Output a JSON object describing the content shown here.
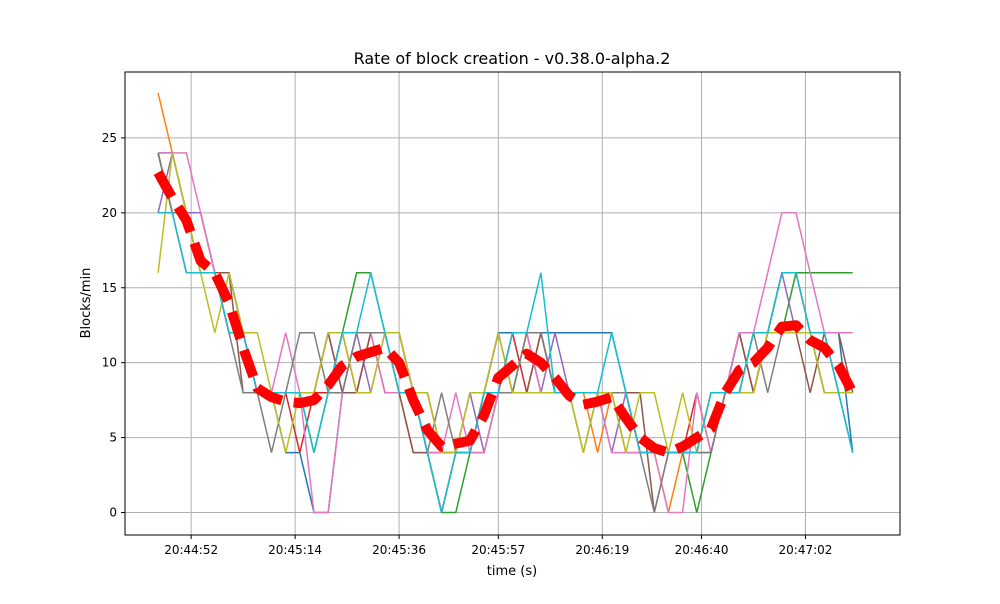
{
  "chart_data": {
    "type": "line",
    "title": "Rate of block creation  -  v0.38.0-alpha.2",
    "xlabel": "time (s)",
    "ylabel": "Blocks/min",
    "xlim": [
      "20:44:38",
      "20:47:22"
    ],
    "ylim": [
      -1.5,
      29.4
    ],
    "grid": true,
    "xticks": [
      "20:44:52",
      "20:45:14",
      "20:45:36",
      "20:45:57",
      "20:46:19",
      "20:46:40",
      "20:47:02"
    ],
    "yticks": [
      0,
      5,
      10,
      15,
      20,
      25
    ],
    "x": [
      "20:44:45",
      "20:44:48",
      "20:44:51",
      "20:44:54",
      "20:44:57",
      "20:45:00",
      "20:45:03",
      "20:45:06",
      "20:45:09",
      "20:45:12",
      "20:45:15",
      "20:45:18",
      "20:45:21",
      "20:45:24",
      "20:45:27",
      "20:45:30",
      "20:45:33",
      "20:45:36",
      "20:45:39",
      "20:45:42",
      "20:45:45",
      "20:45:48",
      "20:45:51",
      "20:45:54",
      "20:45:57",
      "20:46:00",
      "20:46:03",
      "20:46:06",
      "20:46:09",
      "20:46:12",
      "20:46:15",
      "20:46:18",
      "20:46:21",
      "20:46:24",
      "20:46:27",
      "20:46:30",
      "20:46:33",
      "20:46:36",
      "20:46:39",
      "20:46:42",
      "20:46:45",
      "20:46:48",
      "20:46:51",
      "20:46:54",
      "20:46:57",
      "20:47:00",
      "20:47:03",
      "20:47:06",
      "20:47:09",
      "20:47:12"
    ],
    "series": [
      {
        "color": "#1f77b4",
        "values": [
          24,
          20,
          20,
          16,
          16,
          16,
          12,
          8,
          8,
          4,
          4,
          0,
          0,
          8,
          12,
          12,
          12,
          8,
          8,
          4,
          4,
          4,
          4,
          8,
          12,
          12,
          12,
          12,
          12,
          12,
          12,
          12,
          12,
          8,
          4,
          4,
          4,
          4,
          4,
          4,
          8,
          12,
          12,
          12,
          16,
          16,
          12,
          12,
          12,
          4
        ]
      },
      {
        "color": "#ff7f0e",
        "values": [
          28,
          24,
          20,
          16,
          16,
          12,
          12,
          8,
          8,
          8,
          8,
          8,
          8,
          12,
          12,
          12,
          12,
          8,
          4,
          4,
          0,
          4,
          4,
          8,
          8,
          8,
          12,
          8,
          8,
          8,
          8,
          4,
          8,
          8,
          4,
          4,
          0,
          4,
          4,
          4,
          8,
          8,
          12,
          12,
          16,
          16,
          12,
          12,
          8,
          8
        ]
      },
      {
        "color": "#2ca02c",
        "values": [
          24,
          24,
          20,
          16,
          16,
          16,
          12,
          8,
          8,
          8,
          8,
          4,
          8,
          12,
          16,
          16,
          12,
          12,
          8,
          4,
          0,
          0,
          4,
          4,
          8,
          8,
          12,
          12,
          8,
          8,
          4,
          8,
          8,
          4,
          4,
          4,
          4,
          4,
          0,
          4,
          8,
          8,
          8,
          12,
          12,
          16,
          16,
          16,
          16,
          16
        ]
      },
      {
        "color": "#d62728",
        "values": [
          24,
          20,
          20,
          20,
          16,
          12,
          12,
          8,
          8,
          8,
          4,
          8,
          8,
          12,
          8,
          12,
          12,
          12,
          8,
          8,
          4,
          4,
          4,
          8,
          8,
          12,
          8,
          12,
          8,
          8,
          8,
          8,
          8,
          8,
          4,
          4,
          4,
          4,
          8,
          4,
          8,
          12,
          8,
          12,
          12,
          12,
          12,
          8,
          8,
          8
        ]
      },
      {
        "color": "#9467bd",
        "values": [
          20,
          24,
          20,
          20,
          16,
          16,
          12,
          8,
          8,
          8,
          8,
          8,
          12,
          8,
          12,
          8,
          12,
          12,
          8,
          4,
          4,
          4,
          8,
          4,
          8,
          12,
          12,
          8,
          12,
          8,
          8,
          8,
          4,
          8,
          4,
          4,
          4,
          4,
          4,
          8,
          8,
          8,
          12,
          12,
          16,
          12,
          12,
          12,
          8,
          8
        ]
      },
      {
        "color": "#8c564b",
        "values": [
          24,
          20,
          16,
          16,
          16,
          16,
          8,
          8,
          8,
          8,
          8,
          8,
          12,
          8,
          8,
          12,
          8,
          8,
          4,
          4,
          0,
          4,
          4,
          8,
          12,
          8,
          8,
          12,
          8,
          8,
          8,
          8,
          8,
          8,
          8,
          0,
          4,
          4,
          4,
          8,
          8,
          12,
          8,
          12,
          12,
          12,
          8,
          12,
          12,
          8
        ]
      },
      {
        "color": "#e377c2",
        "values": [
          24,
          24,
          24,
          20,
          16,
          12,
          12,
          8,
          8,
          12,
          8,
          0,
          0,
          8,
          12,
          12,
          8,
          8,
          8,
          4,
          4,
          8,
          4,
          4,
          8,
          12,
          12,
          8,
          8,
          8,
          8,
          8,
          4,
          4,
          4,
          4,
          0,
          0,
          8,
          4,
          8,
          12,
          12,
          16,
          20,
          20,
          16,
          12,
          12,
          12
        ]
      },
      {
        "color": "#7f7f7f",
        "values": [
          24,
          20,
          20,
          16,
          16,
          12,
          8,
          8,
          4,
          8,
          12,
          12,
          8,
          8,
          12,
          12,
          12,
          8,
          8,
          4,
          8,
          4,
          4,
          8,
          8,
          8,
          12,
          12,
          8,
          8,
          8,
          8,
          8,
          8,
          4,
          0,
          4,
          4,
          4,
          4,
          8,
          8,
          12,
          8,
          12,
          12,
          12,
          8,
          8,
          4
        ]
      },
      {
        "color": "#bcbd22",
        "values": [
          16,
          24,
          20,
          16,
          12,
          16,
          12,
          12,
          8,
          4,
          8,
          8,
          12,
          12,
          8,
          8,
          12,
          12,
          8,
          8,
          4,
          4,
          8,
          8,
          12,
          8,
          8,
          8,
          8,
          8,
          4,
          8,
          8,
          4,
          8,
          8,
          4,
          8,
          4,
          8,
          8,
          8,
          8,
          12,
          12,
          12,
          12,
          8,
          8,
          8
        ]
      },
      {
        "color": "#17becf",
        "values": [
          20,
          20,
          16,
          16,
          16,
          12,
          12,
          8,
          8,
          8,
          8,
          4,
          8,
          12,
          12,
          16,
          12,
          8,
          8,
          4,
          0,
          4,
          4,
          8,
          8,
          12,
          12,
          16,
          8,
          8,
          8,
          8,
          12,
          8,
          4,
          4,
          4,
          4,
          4,
          8,
          8,
          8,
          12,
          12,
          16,
          16,
          12,
          12,
          8,
          4
        ]
      }
    ],
    "mean": {
      "color": "#ff0000",
      "style": "dashed",
      "values": [
        22.7,
        21,
        19.5,
        16.8,
        16,
        14,
        11,
        8.3,
        7.7,
        7.4,
        7.3,
        7.5,
        8.5,
        9.8,
        10.4,
        10.7,
        11,
        10,
        7.5,
        5.5,
        4.4,
        4.6,
        4.8,
        6.5,
        9,
        9.8,
        10.6,
        10,
        9,
        7.8,
        7.2,
        7.4,
        7.7,
        6.3,
        5,
        4.3,
        4,
        4.4,
        5,
        5.6,
        8,
        9.5,
        10,
        11,
        12.4,
        12.5,
        11.5,
        11,
        9.8,
        8
      ]
    }
  }
}
